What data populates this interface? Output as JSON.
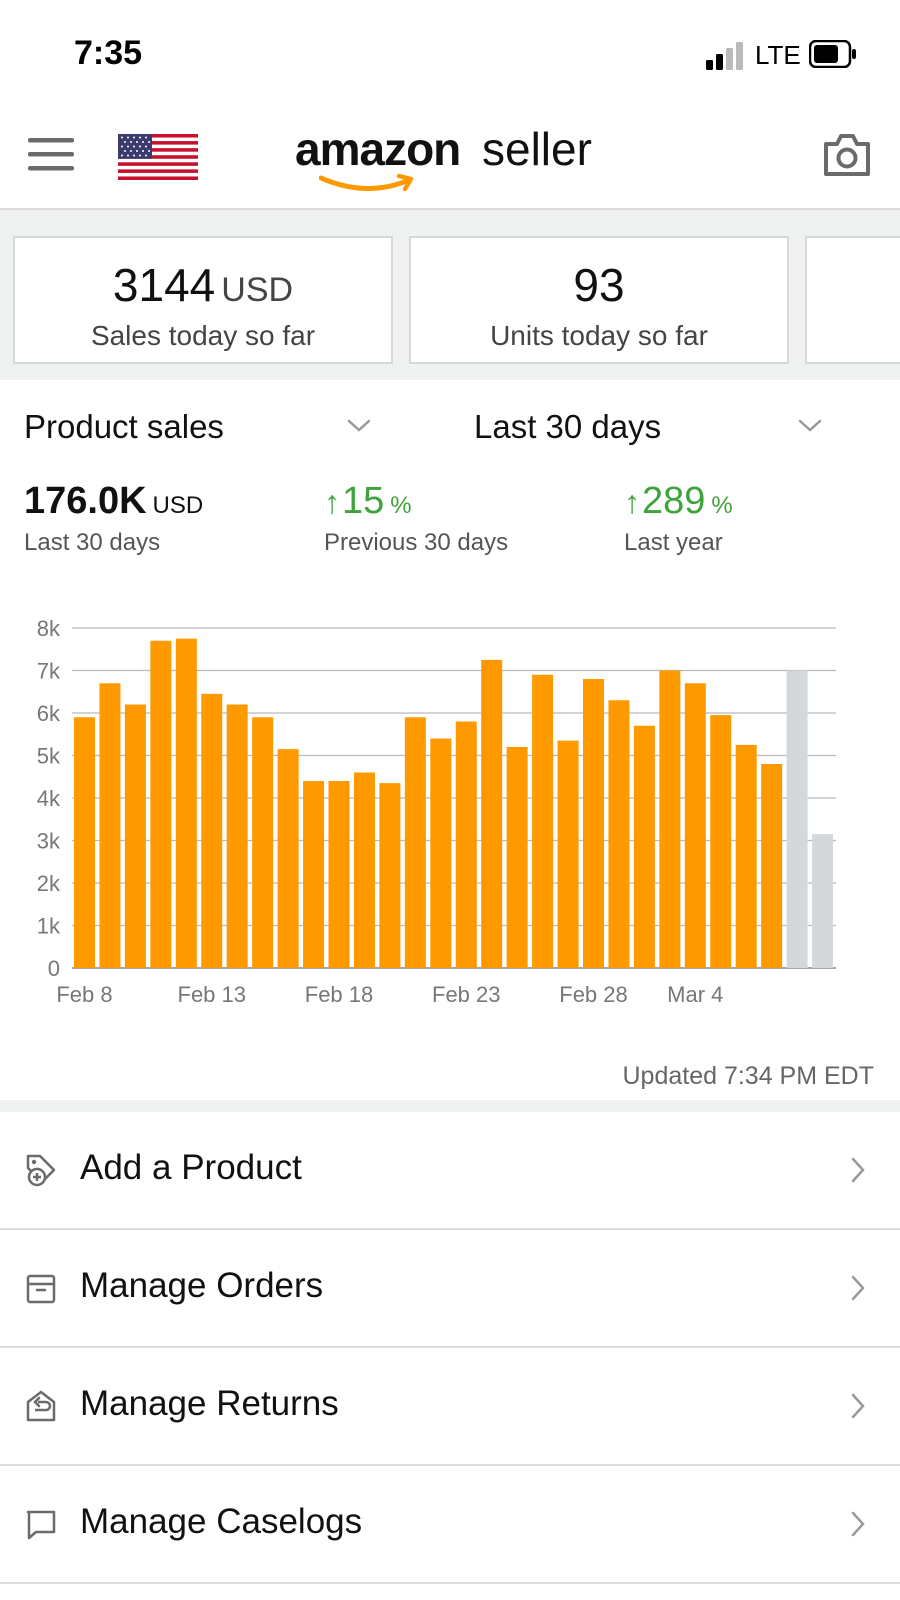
{
  "status_bar": {
    "time": "7:35",
    "network": "LTE"
  },
  "header": {
    "logo_main": "amazon",
    "logo_sub": "seller",
    "icons": [
      "menu-icon",
      "us-flag-icon",
      "camera-icon"
    ]
  },
  "cards": [
    {
      "value": "3144",
      "unit": "USD",
      "label": "Sales today so far"
    },
    {
      "value": "93",
      "unit": "",
      "label": "Units today so far"
    }
  ],
  "selectors": {
    "metric": "Product sales",
    "range": "Last 30 days"
  },
  "stats": {
    "total": {
      "value": "176.0K",
      "unit": "USD",
      "label": "Last 30 days"
    },
    "prev": {
      "value": "15",
      "unit": "%",
      "label": "Previous 30 days",
      "direction": "up"
    },
    "year": {
      "value": "289",
      "unit": "%",
      "label": "Last year",
      "direction": "up"
    }
  },
  "chart_data": {
    "type": "bar",
    "y_ticks": [
      "0",
      "1k",
      "2k",
      "3k",
      "4k",
      "5k",
      "6k",
      "7k",
      "8k"
    ],
    "ylim": [
      0,
      8000
    ],
    "x_tick_labels": [
      "Feb 8",
      "Feb 13",
      "Feb 18",
      "Feb 23",
      "Feb 28",
      "Mar 4"
    ],
    "categories": [
      "Feb 8",
      "Feb 9",
      "Feb 10",
      "Feb 11",
      "Feb 12",
      "Feb 13",
      "Feb 14",
      "Feb 15",
      "Feb 16",
      "Feb 17",
      "Feb 18",
      "Feb 19",
      "Feb 20",
      "Feb 21",
      "Feb 22",
      "Feb 23",
      "Feb 24",
      "Feb 25",
      "Feb 26",
      "Feb 27",
      "Feb 28",
      "Mar 1",
      "Mar 2",
      "Mar 3",
      "Mar 4",
      "Mar 5",
      "Mar 6",
      "Mar 7",
      "Mar 8",
      "Mar 9"
    ],
    "values": [
      5900,
      6700,
      6200,
      7700,
      7750,
      6450,
      6200,
      5900,
      5150,
      4400,
      4400,
      4600,
      4350,
      5900,
      5400,
      5800,
      7250,
      5200,
      6900,
      5350,
      6800,
      6300,
      5700,
      7000,
      6700,
      5950,
      5250,
      4800,
      7000,
      3150
    ],
    "colors": [
      "orange",
      "orange",
      "orange",
      "orange",
      "orange",
      "orange",
      "orange",
      "orange",
      "orange",
      "orange",
      "orange",
      "orange",
      "orange",
      "orange",
      "orange",
      "orange",
      "orange",
      "orange",
      "orange",
      "orange",
      "orange",
      "orange",
      "orange",
      "orange",
      "orange",
      "orange",
      "orange",
      "orange",
      "gray",
      "gray"
    ],
    "palette": {
      "orange": "#ff9900",
      "gray": "#d5d8da"
    },
    "grid": true
  },
  "updated_text": "Updated 7:34 PM EDT",
  "menu_items": [
    {
      "label": "Add a Product",
      "icon": "add-product-icon"
    },
    {
      "label": "Manage Orders",
      "icon": "orders-box-icon"
    },
    {
      "label": "Manage Returns",
      "icon": "returns-icon"
    },
    {
      "label": "Manage Caselogs",
      "icon": "caselog-chat-icon"
    }
  ]
}
